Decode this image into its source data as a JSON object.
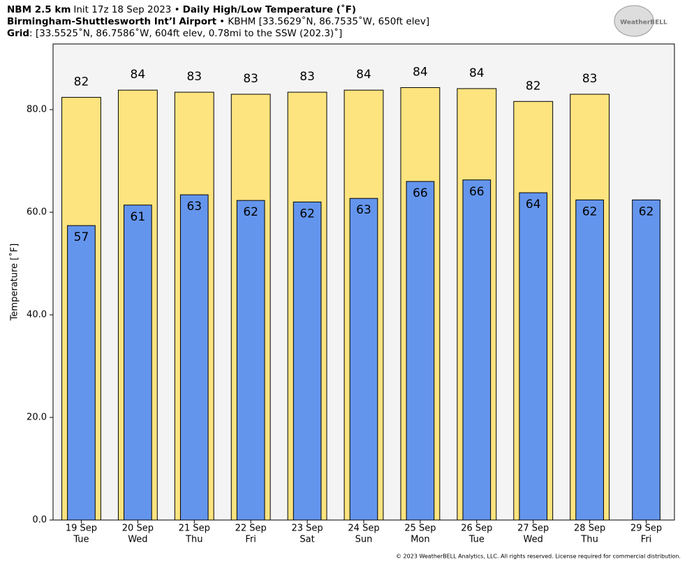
{
  "chart_data": {
    "type": "bar",
    "header": [
      [
        {
          "text": "NBM 2.5 km",
          "bold": true
        },
        {
          "text": "Init 17z 18 Sep 2023 •",
          "bold": false
        },
        {
          "text": "Daily High/Low Temperature (˚F)",
          "bold": true
        }
      ],
      [
        {
          "text": "Birmingham-Shuttlesworth Int’l Airport",
          "bold": true
        },
        {
          "text": "• KBHM [33.5629˚N, 86.7535˚W, 650ft elev]",
          "bold": false
        }
      ],
      [
        {
          "text": "Grid",
          "bold": true
        },
        {
          "text": ": [33.5525˚N, 86.7586˚W, 604ft elev, 0.78mi to the SSW (202.3)˚]",
          "bold": false
        }
      ]
    ],
    "logo": "WeatherBELL",
    "footer": "© 2023 WeatherBELL Analytics, LLC. All rights reserved. License required for commercial distribution.",
    "ylabel": "Temperature [˚F]",
    "categories": [
      "19 Sep",
      "20 Sep",
      "21 Sep",
      "22 Sep",
      "23 Sep",
      "24 Sep",
      "25 Sep",
      "26 Sep",
      "27 Sep",
      "28 Sep",
      "29 Sep"
    ],
    "weekdays": [
      "Tue",
      "Wed",
      "Thu",
      "Fri",
      "Sat",
      "Sun",
      "Mon",
      "Tue",
      "Wed",
      "Thu",
      "Fri"
    ],
    "series": [
      {
        "color": "#fde47f",
        "values": [
          82.4,
          83.8,
          83.4,
          83.0,
          83.4,
          83.8,
          84.3,
          84.1,
          81.6,
          83.0,
          null
        ],
        "value_labels": [
          "82",
          "84",
          "83",
          "83",
          "83",
          "84",
          "84",
          "84",
          "82",
          "83",
          null
        ]
      },
      {
        "color": "#6495ed",
        "values": [
          57.4,
          61.4,
          63.4,
          62.3,
          62.0,
          62.7,
          66.0,
          66.3,
          63.8,
          62.4,
          62.4
        ],
        "value_labels": [
          "57",
          "61",
          "63",
          "62",
          "62",
          "63",
          "66",
          "66",
          "64",
          "62",
          "62"
        ]
      }
    ],
    "ylim": [
      0,
      92.8
    ],
    "yticks": [
      {
        "value": 0,
        "label": "0.0"
      },
      {
        "value": 20,
        "label": "20.0"
      },
      {
        "value": 40,
        "label": "40.0"
      },
      {
        "value": 60,
        "label": "60.0"
      },
      {
        "value": 80,
        "label": "80.0"
      }
    ],
    "plot_background": "#f4f4f4"
  }
}
